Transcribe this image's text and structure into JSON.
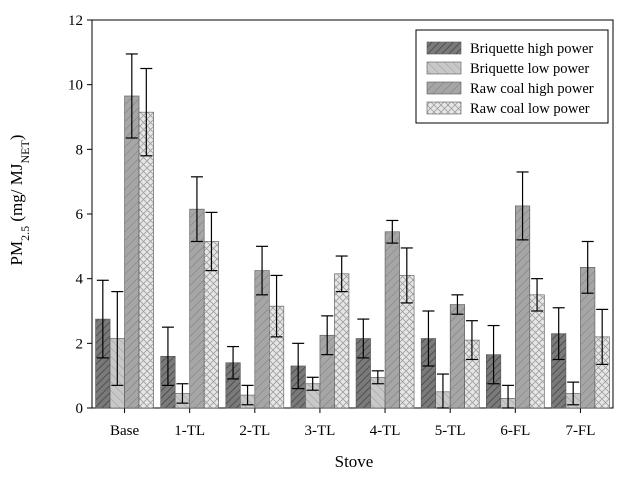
{
  "chart_data": {
    "type": "bar",
    "xlabel": "Stove",
    "ylabel_main": "PM",
    "ylabel_sub": "2.5",
    "ylabel_mid": " (mg/ MJ",
    "ylabel_sub2": "NET",
    "ylabel_end": ")",
    "ylim": [
      0,
      12
    ],
    "yticks": [
      "0",
      "2",
      "4",
      "6",
      "8",
      "10",
      "12"
    ],
    "categories": [
      "Base",
      "1-TL",
      "2-TL",
      "3-TL",
      "4-TL",
      "5-TL",
      "6-FL",
      "7-FL"
    ],
    "grid": false,
    "legend_position": "top-right",
    "series": [
      {
        "name": "Briquette high power",
        "pattern": "dark-hatch",
        "values": [
          2.75,
          1.6,
          1.4,
          1.3,
          2.15,
          2.15,
          1.65,
          2.3
        ],
        "errors": [
          1.2,
          0.9,
          0.5,
          0.7,
          0.6,
          0.85,
          0.9,
          0.8
        ]
      },
      {
        "name": "Briquette low power",
        "pattern": "light-hatch",
        "values": [
          2.15,
          0.45,
          0.4,
          0.75,
          0.95,
          0.5,
          0.3,
          0.45
        ],
        "errors": [
          1.45,
          0.3,
          0.3,
          0.2,
          0.2,
          0.55,
          0.4,
          0.35
        ]
      },
      {
        "name": "Raw coal high power",
        "pattern": "medium-hatch",
        "values": [
          9.65,
          6.15,
          4.25,
          2.25,
          5.45,
          3.2,
          6.25,
          4.35
        ],
        "errors": [
          1.3,
          1.0,
          0.75,
          0.6,
          0.35,
          0.3,
          1.05,
          0.8
        ]
      },
      {
        "name": "Raw coal low power",
        "pattern": "crosshatch",
        "values": [
          9.15,
          5.15,
          3.15,
          4.15,
          4.1,
          2.1,
          3.5,
          2.2
        ],
        "errors": [
          1.35,
          0.9,
          0.95,
          0.55,
          0.85,
          0.6,
          0.5,
          0.85
        ]
      }
    ]
  }
}
